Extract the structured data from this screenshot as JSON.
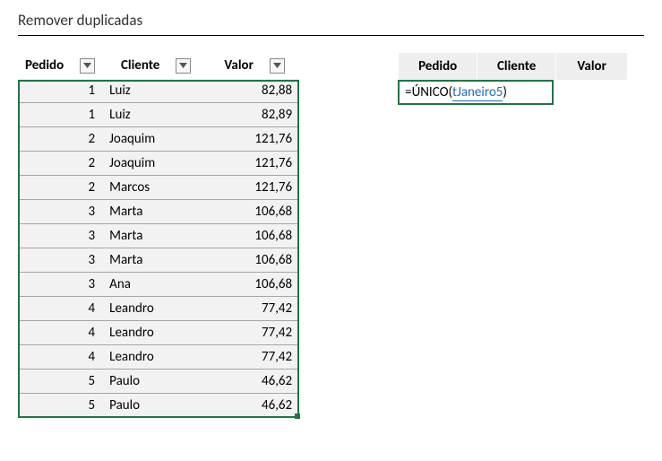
{
  "title": "Remover duplicadas",
  "left": {
    "headers": {
      "pedido": "Pedido",
      "cliente": "Cliente",
      "valor": "Valor"
    },
    "rows": [
      {
        "pedido": "1",
        "cliente": "Luiz",
        "valor": "82,88"
      },
      {
        "pedido": "1",
        "cliente": "Luiz",
        "valor": "82,89"
      },
      {
        "pedido": "2",
        "cliente": "Joaquim",
        "valor": "121,76"
      },
      {
        "pedido": "2",
        "cliente": "Joaquim",
        "valor": "121,76"
      },
      {
        "pedido": "2",
        "cliente": "Marcos",
        "valor": "121,76"
      },
      {
        "pedido": "3",
        "cliente": "Marta",
        "valor": "106,68"
      },
      {
        "pedido": "3",
        "cliente": "Marta",
        "valor": "106,68"
      },
      {
        "pedido": "3",
        "cliente": "Marta",
        "valor": "106,68"
      },
      {
        "pedido": "3",
        "cliente": "Ana",
        "valor": "106,68"
      },
      {
        "pedido": "4",
        "cliente": "Leandro",
        "valor": "77,42"
      },
      {
        "pedido": "4",
        "cliente": "Leandro",
        "valor": "77,42"
      },
      {
        "pedido": "4",
        "cliente": "Leandro",
        "valor": "77,42"
      },
      {
        "pedido": "5",
        "cliente": "Paulo",
        "valor": "46,62"
      },
      {
        "pedido": "5",
        "cliente": "Paulo",
        "valor": "46,62"
      }
    ]
  },
  "right": {
    "headers": {
      "pedido": "Pedido",
      "cliente": "Cliente",
      "valor": "Valor"
    },
    "formula_prefix": "=ÚNICO(",
    "formula_ref": "tJaneiro5",
    "formula_suffix": ")"
  },
  "colors": {
    "selection_border": "#217346",
    "header_bg_right": "#eeeeee",
    "row_border": "#a6a6a6",
    "ref_color": "#1f6fb3"
  }
}
